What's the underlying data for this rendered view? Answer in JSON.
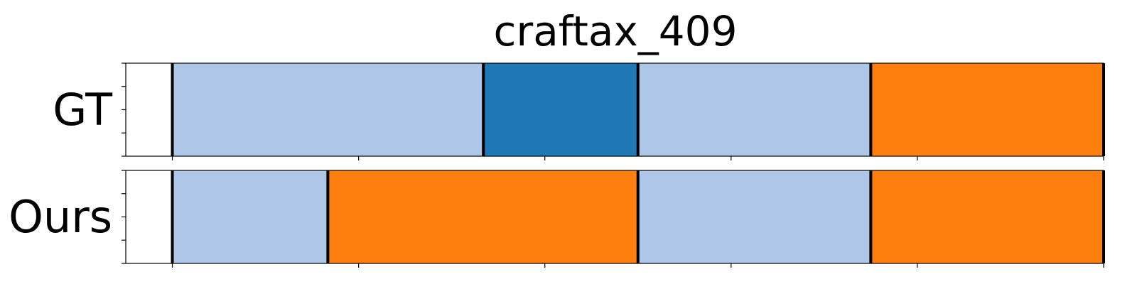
{
  "chart_data": {
    "type": "segmentation",
    "title": "craftax_409",
    "xlim": [
      -5,
      100
    ],
    "x_ticks": [
      0,
      20,
      40,
      60,
      80,
      100
    ],
    "show_tick_labels": false,
    "rows": [
      {
        "label": "GT",
        "segments": [
          {
            "start": 0,
            "end": 33.4,
            "class": "light-blue"
          },
          {
            "start": 33.4,
            "end": 50,
            "class": "dark-blue"
          },
          {
            "start": 50,
            "end": 75,
            "class": "light-blue"
          },
          {
            "start": 75,
            "end": 100,
            "class": "orange"
          }
        ],
        "boundaries": [
          0,
          33.4,
          50,
          75,
          100
        ]
      },
      {
        "label": "Ours",
        "segments": [
          {
            "start": 0,
            "end": 16.7,
            "class": "light-blue"
          },
          {
            "start": 16.7,
            "end": 50,
            "class": "orange"
          },
          {
            "start": 50,
            "end": 75,
            "class": "light-blue"
          },
          {
            "start": 75,
            "end": 100,
            "class": "orange"
          }
        ],
        "boundaries": [
          0,
          16.7,
          50,
          75,
          100
        ]
      }
    ],
    "colors": {
      "light-blue": "#aec7e8",
      "dark-blue": "#1f77b4",
      "orange": "#ff7f0e",
      "boundary": "#000000"
    }
  }
}
